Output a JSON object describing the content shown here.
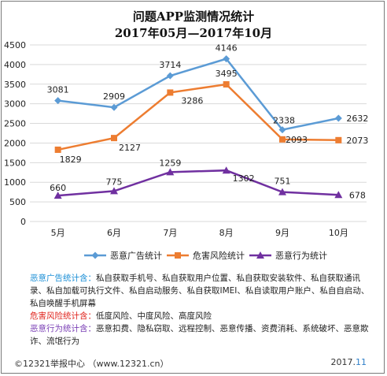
{
  "chart_data": {
    "type": "line",
    "title": "问题APP监测情况统计",
    "subtitle": "2017年05月—2017年10月",
    "categories": [
      "5月",
      "6月",
      "7月",
      "8月",
      "9月",
      "10月"
    ],
    "ylim": [
      0,
      4500
    ],
    "yticks": [
      0,
      500,
      1000,
      1500,
      2000,
      2500,
      3000,
      3500,
      4000,
      4500
    ],
    "grid": true,
    "legend": "bottom",
    "series": [
      {
        "name": "恶意广告统计",
        "values": [
          3081,
          2909,
          3714,
          4146,
          2338,
          2632
        ],
        "color": "#5b9bd5",
        "marker": "diamond"
      },
      {
        "name": "危害风险统计",
        "values": [
          1829,
          2127,
          3286,
          3495,
          2093,
          2073
        ],
        "color": "#ed7d31",
        "marker": "square"
      },
      {
        "name": "恶意行为统计",
        "values": [
          660,
          775,
          1259,
          1302,
          751,
          678
        ],
        "color": "#7030a0",
        "marker": "triangle"
      }
    ]
  },
  "notes": [
    {
      "key": "恶意广告统计含：",
      "text": "私自获取手机号、私自获取用户位置、私自获取安装软件、私自获取通讯录、私自加载可执行文件、私自启动服务、私自获取IMEI、私自读取用户账户、私自自启动、私自唤醒手机屏幕"
    },
    {
      "key": "危害风险统计含：",
      "text": "低度风险、中度风险、高度风险"
    },
    {
      "key": "恶意行为统计含：",
      "text": "恶意扣费、隐私窃取、远程控制、恶意传播、资费消耗、系统破坏、恶意欺诈、流氓行为"
    }
  ],
  "footer": {
    "source": "©12321举报中心  （www.12321.cn）",
    "date_year": "2017.",
    "date_month": "11"
  }
}
